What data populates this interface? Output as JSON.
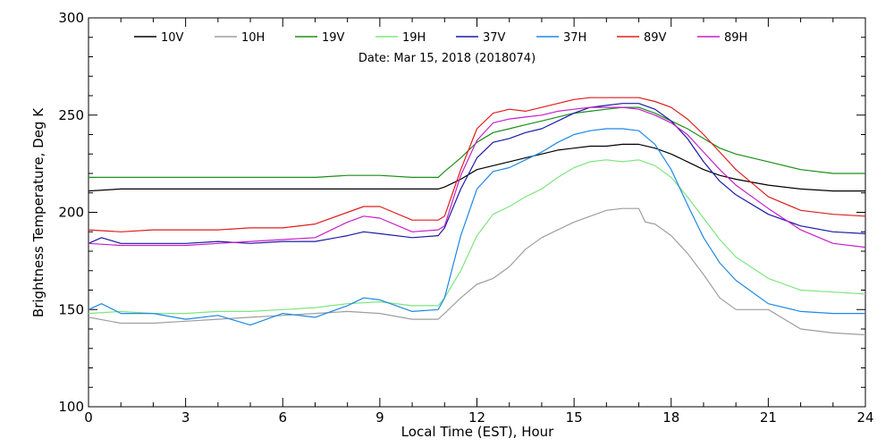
{
  "chart_data": {
    "type": "line",
    "title": "",
    "subtitle": "Date: Mar 15, 2018 (2018074)",
    "xlabel": "Local Time (EST), Hour",
    "ylabel": "Brightness Temperature, Deg K",
    "xlim": [
      0,
      24
    ],
    "ylim": [
      100,
      300
    ],
    "xticks": [
      0,
      3,
      6,
      9,
      12,
      15,
      18,
      21,
      24
    ],
    "yticks": [
      100,
      150,
      200,
      250,
      300
    ],
    "grid": false,
    "legend_position": "top",
    "series": [
      {
        "name": "10V",
        "color": "#000000",
        "x": [
          0,
          1,
          2,
          3,
          4,
          5,
          6,
          7,
          8,
          9,
          10,
          10.8,
          11,
          11.5,
          12,
          12.5,
          13,
          13.5,
          14,
          14.5,
          15,
          15.5,
          16,
          16.5,
          17,
          17.5,
          18,
          18.5,
          19,
          19.5,
          20,
          21,
          22,
          23,
          24
        ],
        "y": [
          211,
          212,
          212,
          212,
          212,
          212,
          212,
          212,
          212,
          212,
          212,
          212,
          213,
          217,
          222,
          224,
          226,
          228,
          230,
          232,
          233,
          234,
          234,
          235,
          235,
          233,
          230,
          226,
          222,
          219,
          217,
          214,
          212,
          211,
          211
        ]
      },
      {
        "name": "10H",
        "color": "#9e9e9e",
        "x": [
          0,
          1,
          2,
          3,
          4,
          5,
          6,
          7,
          8,
          9,
          10,
          10.8,
          11,
          11.5,
          12,
          12.5,
          13,
          13.5,
          14,
          14.5,
          15,
          15.5,
          16,
          16.5,
          17,
          17.2,
          17.5,
          18,
          18.5,
          19,
          19.5,
          20,
          21,
          21.5,
          22,
          23,
          24
        ],
        "y": [
          146,
          143,
          143,
          144,
          145,
          146,
          147,
          148,
          149,
          148,
          145,
          145,
          148,
          156,
          163,
          166,
          172,
          181,
          187,
          191,
          195,
          198,
          201,
          202,
          202,
          195,
          194,
          188,
          179,
          168,
          156,
          150,
          150,
          145,
          140,
          138,
          137
        ]
      },
      {
        "name": "19V",
        "color": "#1a8f1a",
        "x": [
          0,
          1,
          2,
          3,
          4,
          5,
          6,
          7,
          8,
          9,
          10,
          10.8,
          11,
          11.5,
          12,
          12.5,
          13,
          13.5,
          14,
          14.5,
          15,
          15.5,
          16,
          16.5,
          17,
          17.5,
          18,
          18.5,
          19,
          19.5,
          20,
          21,
          22,
          23,
          24
        ],
        "y": [
          218,
          218,
          218,
          218,
          218,
          218,
          218,
          218,
          219,
          219,
          218,
          218,
          221,
          228,
          236,
          241,
          243,
          245,
          247,
          249,
          251,
          252,
          253,
          254,
          254,
          251,
          247,
          243,
          238,
          233,
          230,
          226,
          222,
          220,
          220
        ]
      },
      {
        "name": "19H",
        "color": "#7fe57f",
        "x": [
          0,
          1,
          2,
          3,
          4,
          5,
          6,
          7,
          8,
          9,
          10,
          10.8,
          11,
          11.5,
          12,
          12.5,
          13,
          13.5,
          14,
          14.5,
          15,
          15.5,
          16,
          16.5,
          17,
          17.5,
          18,
          18.5,
          19,
          19.5,
          20,
          21,
          22,
          23,
          24
        ],
        "y": [
          148,
          149,
          148,
          148,
          149,
          149,
          150,
          151,
          153,
          154,
          152,
          152,
          156,
          170,
          188,
          199,
          203,
          208,
          212,
          218,
          223,
          226,
          227,
          226,
          227,
          224,
          218,
          208,
          197,
          186,
          177,
          166,
          160,
          159,
          158
        ]
      },
      {
        "name": "37V",
        "color": "#1a1aa6",
        "x": [
          0,
          0.4,
          1,
          2,
          3,
          4,
          5,
          6,
          7,
          8,
          8.5,
          9,
          10,
          10.8,
          11,
          11.5,
          12,
          12.5,
          13,
          13.5,
          14,
          14.5,
          15,
          15.5,
          16,
          16.5,
          17,
          17.5,
          18,
          18.5,
          19,
          19.5,
          20,
          21,
          22,
          23,
          24
        ],
        "y": [
          184,
          187,
          184,
          184,
          184,
          185,
          184,
          185,
          185,
          188,
          190,
          189,
          187,
          188,
          192,
          212,
          228,
          236,
          238,
          241,
          243,
          247,
          251,
          254,
          255,
          256,
          256,
          253,
          247,
          238,
          226,
          216,
          209,
          199,
          193,
          190,
          189
        ]
      },
      {
        "name": "37H",
        "color": "#1e88e5",
        "x": [
          0,
          0.4,
          1,
          2,
          3,
          4,
          5,
          6,
          7,
          8,
          8.5,
          9,
          10,
          10.8,
          11,
          11.5,
          12,
          12.5,
          13,
          13.5,
          14,
          14.5,
          15,
          15.5,
          16,
          16.5,
          17,
          17.5,
          18,
          18.5,
          19,
          19.5,
          20,
          21,
          22,
          23,
          24
        ],
        "y": [
          150,
          153,
          148,
          148,
          145,
          147,
          142,
          148,
          146,
          152,
          156,
          155,
          149,
          150,
          156,
          188,
          212,
          221,
          223,
          227,
          231,
          236,
          240,
          242,
          243,
          243,
          242,
          235,
          222,
          204,
          187,
          174,
          165,
          153,
          149,
          148,
          148
        ]
      },
      {
        "name": "89V",
        "color": "#e01e1e",
        "x": [
          0,
          1,
          2,
          3,
          4,
          5,
          6,
          7,
          8,
          8.5,
          9,
          10,
          10.8,
          11,
          11.5,
          12,
          12.5,
          13,
          13.5,
          14,
          14.5,
          15,
          15.5,
          16,
          16.5,
          17,
          17.5,
          18,
          18.5,
          19,
          19.5,
          20,
          21,
          22,
          23,
          24
        ],
        "y": [
          191,
          190,
          191,
          191,
          191,
          192,
          192,
          194,
          200,
          203,
          203,
          196,
          196,
          198,
          222,
          243,
          251,
          253,
          252,
          254,
          256,
          258,
          259,
          259,
          259,
          259,
          257,
          254,
          248,
          240,
          231,
          222,
          208,
          201,
          199,
          198
        ]
      },
      {
        "name": "89H",
        "color": "#c81ec8",
        "x": [
          0,
          1,
          2,
          3,
          4,
          5,
          6,
          7,
          8,
          8.5,
          9,
          10,
          10.8,
          11,
          11.5,
          12,
          12.5,
          13,
          13.5,
          14,
          14.5,
          15,
          15.5,
          16,
          16.5,
          17,
          17.5,
          18,
          18.5,
          19,
          19.5,
          20,
          21,
          22,
          23,
          24
        ],
        "y": [
          184,
          183,
          183,
          183,
          184,
          185,
          186,
          187,
          195,
          198,
          197,
          190,
          191,
          193,
          219,
          237,
          246,
          248,
          249,
          250,
          252,
          253,
          254,
          254,
          254,
          253,
          250,
          246,
          240,
          231,
          222,
          214,
          202,
          191,
          184,
          182
        ]
      }
    ]
  }
}
